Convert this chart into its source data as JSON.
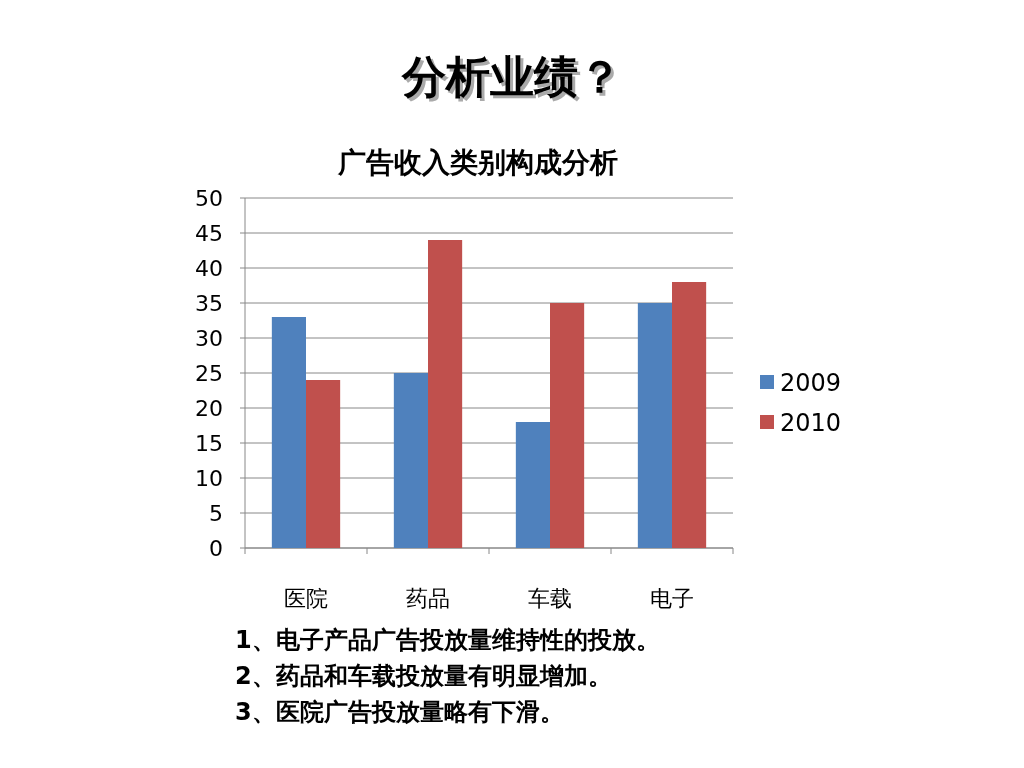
{
  "chart_data": {
    "type": "bar",
    "title": "分析业绩？",
    "subtitle": "广告收入类别构成分析",
    "categories": [
      "医院",
      "药品",
      "车载",
      "电子"
    ],
    "series": [
      {
        "name": "2009",
        "color": "#4f81bd",
        "values": [
          33,
          25,
          18,
          35
        ]
      },
      {
        "name": "2010",
        "color": "#c0504d",
        "values": [
          24,
          44,
          35,
          38
        ]
      }
    ],
    "ylim": [
      0,
      50
    ],
    "yticks": [
      0,
      5,
      10,
      15,
      20,
      25,
      30,
      35,
      40,
      45,
      50
    ],
    "grid": "y",
    "legend": "right",
    "annotations": [
      "1、电子产品广告投放量维持性的投放。",
      "2、药品和车载投放量有明显增加。",
      "3、医院广告投放量略有下滑。"
    ]
  }
}
